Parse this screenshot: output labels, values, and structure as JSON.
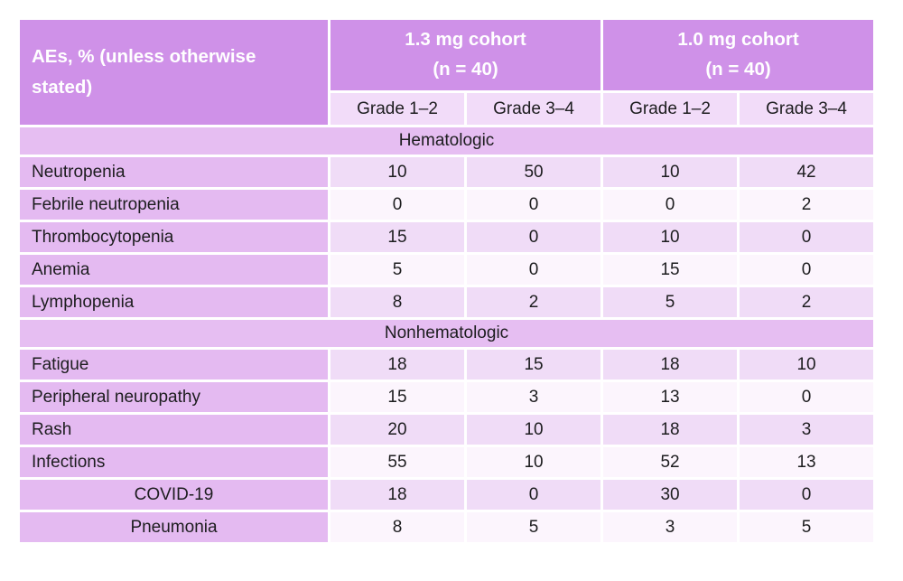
{
  "colors": {
    "page_bg": "#ffffff",
    "header_bg": "#cf91e8",
    "header_text": "#ffffff",
    "grade_bg": "#f2dcf9",
    "section_bg": "#e6bef2",
    "label_bg": "#e4baf1",
    "stripe_a": "#f0dcf7",
    "stripe_b": "#fcf5fd",
    "body_text": "#1d1d1f",
    "grid_gap": "#ffffff"
  },
  "chart_data": {
    "type": "table",
    "corner_header": "AEs, % (unless otherwise stated)",
    "column_groups": [
      {
        "label": "1.3 mg cohort",
        "sublabel": "(n = 40)",
        "columns": [
          "Grade 1–2",
          "Grade 3–4"
        ]
      },
      {
        "label": "1.0 mg cohort",
        "sublabel": "(n = 40)",
        "columns": [
          "Grade 1–2",
          "Grade 3–4"
        ]
      }
    ],
    "sections": [
      {
        "title": "Hematologic",
        "rows": [
          {
            "label": "Neutropenia",
            "indent": false,
            "values": [
              10,
              50,
              10,
              42
            ]
          },
          {
            "label": "Febrile neutropenia",
            "indent": false,
            "values": [
              0,
              0,
              0,
              2
            ]
          },
          {
            "label": "Thrombocytopenia",
            "indent": false,
            "values": [
              15,
              0,
              10,
              0
            ]
          },
          {
            "label": "Anemia",
            "indent": false,
            "values": [
              5,
              0,
              15,
              0
            ]
          },
          {
            "label": "Lymphopenia",
            "indent": false,
            "values": [
              8,
              2,
              5,
              2
            ]
          }
        ]
      },
      {
        "title": "Nonhematologic",
        "rows": [
          {
            "label": "Fatigue",
            "indent": false,
            "values": [
              18,
              15,
              18,
              10
            ]
          },
          {
            "label": "Peripheral neuropathy",
            "indent": false,
            "values": [
              15,
              3,
              13,
              0
            ]
          },
          {
            "label": "Rash",
            "indent": false,
            "values": [
              20,
              10,
              18,
              3
            ]
          },
          {
            "label": "Infections",
            "indent": false,
            "values": [
              55,
              10,
              52,
              13
            ]
          },
          {
            "label": "COVID-19",
            "indent": true,
            "values": [
              18,
              0,
              30,
              0
            ]
          },
          {
            "label": "Pneumonia",
            "indent": true,
            "values": [
              8,
              5,
              3,
              5
            ]
          }
        ]
      }
    ]
  }
}
